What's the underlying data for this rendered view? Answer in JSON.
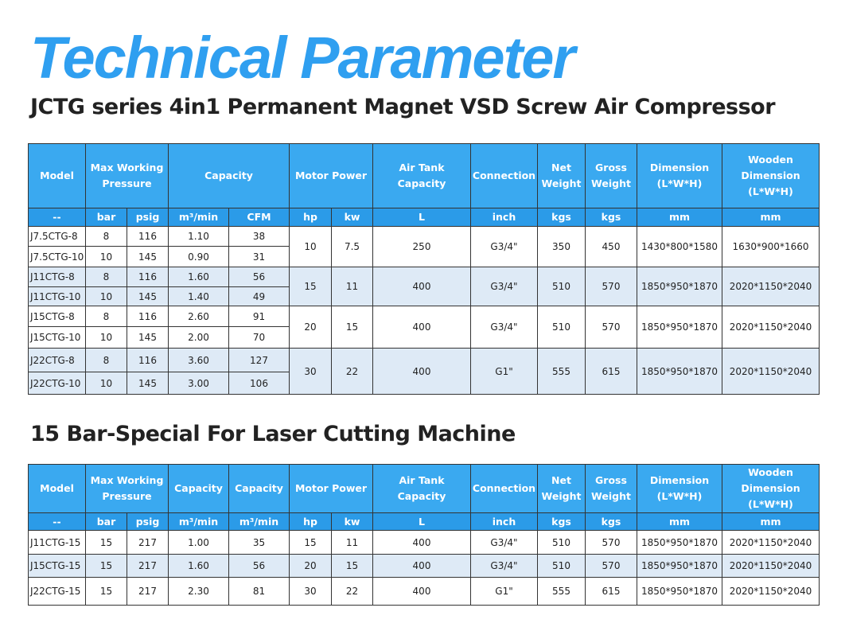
{
  "title": "Technical Parameter",
  "subtitle": "JCTG series 4in1 Permanent Magnet VSD Screw Air Compressor",
  "subtitle2": "15 Bar-Special For Laser Cutting Machine",
  "colors": {
    "title": "#2f9ff0",
    "header": "#3aa9f0",
    "unit_header": "#2b9be8",
    "alt_row": "#deeaf6"
  },
  "table1": {
    "headers": [
      {
        "label": "Model",
        "span": 1
      },
      {
        "label": "Max Working Pressure",
        "span": 2
      },
      {
        "label": "Capacity",
        "span": 2
      },
      {
        "label": "Motor Power",
        "span": 2
      },
      {
        "label": "Air Tank Capacity",
        "span": 1
      },
      {
        "label": "Connection",
        "span": 1
      },
      {
        "label": "Net Weight",
        "span": 1
      },
      {
        "label": "Gross Weight",
        "span": 1
      },
      {
        "label": "Dimension (L*W*H)",
        "span": 1
      },
      {
        "label": "Wooden Dimension (L*W*H)",
        "span": 1
      }
    ],
    "units": [
      "--",
      "bar",
      "psig",
      "m³/min",
      "CFM",
      "hp",
      "kw",
      "L",
      "inch",
      "kgs",
      "kgs",
      "mm",
      "mm"
    ],
    "groups": [
      {
        "rows": [
          [
            "J7.5CTG-8",
            "8",
            "116",
            "1.10",
            "38"
          ],
          [
            "J7.5CTG-10",
            "10",
            "145",
            "0.90",
            "31"
          ]
        ],
        "shared": [
          "10",
          "7.5",
          "250",
          "G3/4\"",
          "350",
          "450",
          "1430*800*1580",
          "1630*900*1660"
        ]
      },
      {
        "rows": [
          [
            "J11CTG-8",
            "8",
            "116",
            "1.60",
            "56"
          ],
          [
            "J11CTG-10",
            "10",
            "145",
            "1.40",
            "49"
          ]
        ],
        "shared": [
          "15",
          "11",
          "400",
          "G3/4\"",
          "510",
          "570",
          "1850*950*1870",
          "2020*1150*2040"
        ]
      },
      {
        "rows": [
          [
            "J15CTG-8",
            "8",
            "116",
            "2.60",
            "91"
          ],
          [
            "J15CTG-10",
            "10",
            "145",
            "2.00",
            "70"
          ]
        ],
        "shared": [
          "20",
          "15",
          "400",
          "G3/4\"",
          "510",
          "570",
          "1850*950*1870",
          "2020*1150*2040"
        ]
      },
      {
        "rows": [
          [
            "J22CTG-8",
            "8",
            "116",
            "3.60",
            "127"
          ],
          [
            "J22CTG-10",
            "10",
            "145",
            "3.00",
            "106"
          ]
        ],
        "shared": [
          "30",
          "22",
          "400",
          "G1\"",
          "555",
          "615",
          "1850*950*1870",
          "2020*1150*2040"
        ]
      }
    ]
  },
  "table2": {
    "headers": [
      {
        "label": "Model",
        "span": 1
      },
      {
        "label": "Max Working Pressure",
        "span": 2
      },
      {
        "label": "Capacity",
        "span": 1
      },
      {
        "label": "Capacity",
        "span": 1
      },
      {
        "label": "Motor Power",
        "span": 2
      },
      {
        "label": "Air Tank Capacity",
        "span": 1
      },
      {
        "label": "Connection",
        "span": 1
      },
      {
        "label": "Net Weight",
        "span": 1
      },
      {
        "label": "Gross Weight",
        "span": 1
      },
      {
        "label": "Dimension (L*W*H)",
        "span": 1
      },
      {
        "label": "Wooden Dimension (L*W*H)",
        "span": 1
      }
    ],
    "units": [
      "--",
      "bar",
      "psig",
      "m³/min",
      "m³/min",
      "hp",
      "kw",
      "L",
      "inch",
      "kgs",
      "kgs",
      "mm",
      "mm"
    ],
    "groups": [
      {
        "rows": [
          [
            "J11CTG-15",
            "15",
            "217",
            "1.00",
            "35"
          ]
        ],
        "shared": [
          "15",
          "11",
          "400",
          "G3/4\"",
          "510",
          "570",
          "1850*950*1870",
          "2020*1150*2040"
        ]
      },
      {
        "rows": [
          [
            "J15CTG-15",
            "15",
            "217",
            "1.60",
            "56"
          ]
        ],
        "shared": [
          "20",
          "15",
          "400",
          "G3/4\"",
          "510",
          "570",
          "1850*950*1870",
          "2020*1150*2040"
        ]
      },
      {
        "rows": [
          [
            "J22CTG-15",
            "15",
            "217",
            "2.30",
            "81"
          ]
        ],
        "shared": [
          "30",
          "22",
          "400",
          "G1\"",
          "555",
          "615",
          "1850*950*1870",
          "2020*1150*2040"
        ]
      }
    ]
  }
}
